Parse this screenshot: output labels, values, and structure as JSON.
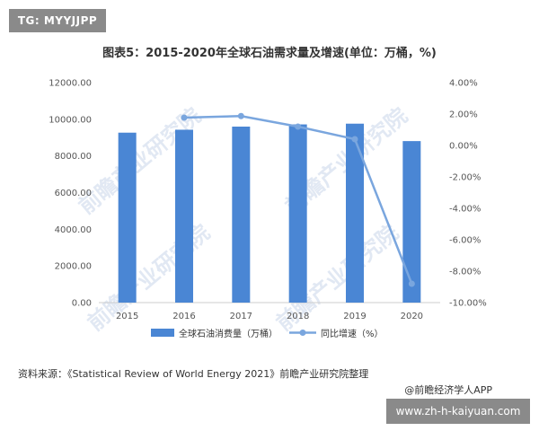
{
  "badges": {
    "top_left": "TG: MYYJJPP",
    "bottom_right": "www.zh-h-kaiyuan.com"
  },
  "title": "图表5：2015-2020年全球石油需求量及增速(单位：万桶，%)",
  "source": "资料来源：《Statistical Review of World Energy 2021》前瞻产业研究院整理",
  "credit": "@前瞻经济学人APP",
  "watermark": "前瞻产业研究院",
  "colors": {
    "bar": "#4a86d4",
    "line": "#7aa6de",
    "axis": "#cccccc"
  },
  "chart_data": {
    "type": "bar",
    "categories": [
      "2015",
      "2016",
      "2017",
      "2018",
      "2019",
      "2020"
    ],
    "series": [
      {
        "name": "全球石油消费量（万桶）",
        "type": "bar",
        "axis": "left",
        "values": [
          9270,
          9430,
          9600,
          9720,
          9760,
          8810
        ]
      },
      {
        "name": "同比增速（%）",
        "type": "line",
        "axis": "right",
        "values": [
          null,
          1.77,
          1.87,
          1.2,
          0.4,
          -8.8
        ]
      }
    ],
    "left_axis": {
      "ylim": [
        0,
        12000
      ],
      "tick_labels": [
        "0.00",
        "2000.00",
        "4000.00",
        "6000.00",
        "8000.00",
        "10000.00",
        "12000.00"
      ]
    },
    "right_axis": {
      "ylim": [
        -10,
        4
      ],
      "tick_labels": [
        "-10.00%",
        "-8.00%",
        "-6.00%",
        "-4.00%",
        "-2.00%",
        "0.00%",
        "2.00%",
        "4.00%"
      ]
    },
    "legend_position": "bottom",
    "grid": false
  }
}
